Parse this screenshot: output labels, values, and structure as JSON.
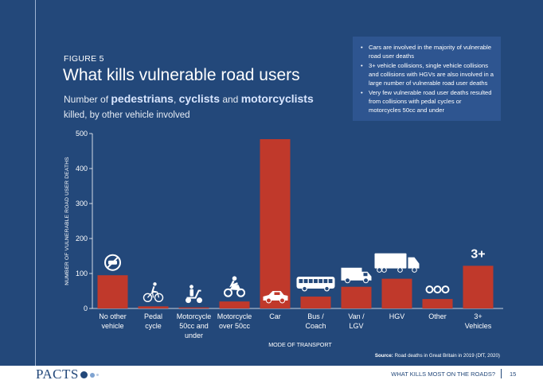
{
  "figure_label": "FIGURE 5",
  "title": "What kills vulnerable road users",
  "subtitle": {
    "prefix": "Number of ",
    "w1": "pedestrians",
    "sep1": ", ",
    "w2": "cyclists",
    "sep2": " and ",
    "w3": "motorcyclists",
    "line2": "killed, by other vehicle involved"
  },
  "notes": [
    "Cars are involved in the majority of vulnerable road user deaths",
    "3+ vehicle collisions, single vehicle collisions and collisions with HGVs are also involved in a large number of vulnerable road user deaths",
    "Very few vulnerable road user deaths resulted from collisions with pedal cycles or motorcycles 50cc and under"
  ],
  "chart_data": {
    "type": "bar",
    "categories": [
      [
        "No other",
        "vehicle"
      ],
      [
        "Pedal",
        "cycle"
      ],
      [
        "Motorcycle",
        "50cc and",
        "under"
      ],
      [
        "Motorcycle",
        "over 50cc"
      ],
      [
        "Car"
      ],
      [
        "Bus /",
        "Coach"
      ],
      [
        "Van /",
        "LGV"
      ],
      [
        "HGV"
      ],
      [
        "Other"
      ],
      [
        "3+",
        "Vehicles"
      ]
    ],
    "values": [
      95,
      6,
      3,
      20,
      484,
      34,
      62,
      85,
      27,
      122
    ],
    "icons": [
      "no-vehicle-icon",
      "bicycle-icon",
      "scooter-icon",
      "motorcycle-icon",
      "car-icon",
      "bus-icon",
      "van-icon",
      "lorry-icon",
      "three-circles-icon",
      "three-plus-icon"
    ],
    "icon_text_3plus": "3+",
    "ylabel": "NUMBER OF VULNERABLE ROAD USER DEATHS",
    "xlabel": "MODE OF TRANSPORT",
    "ylim": [
      0,
      500
    ],
    "yticks": [
      0,
      100,
      200,
      300,
      400,
      500
    ],
    "bar_color": "#c0392b",
    "grid": false
  },
  "source": {
    "label": "Source:",
    "text": " Road deaths in Great Britain in 2019 (DfT, 2020)"
  },
  "footer": {
    "logo": "PACTS",
    "section": "WHAT KILLS MOST ON THE ROADS?",
    "page": "15"
  }
}
